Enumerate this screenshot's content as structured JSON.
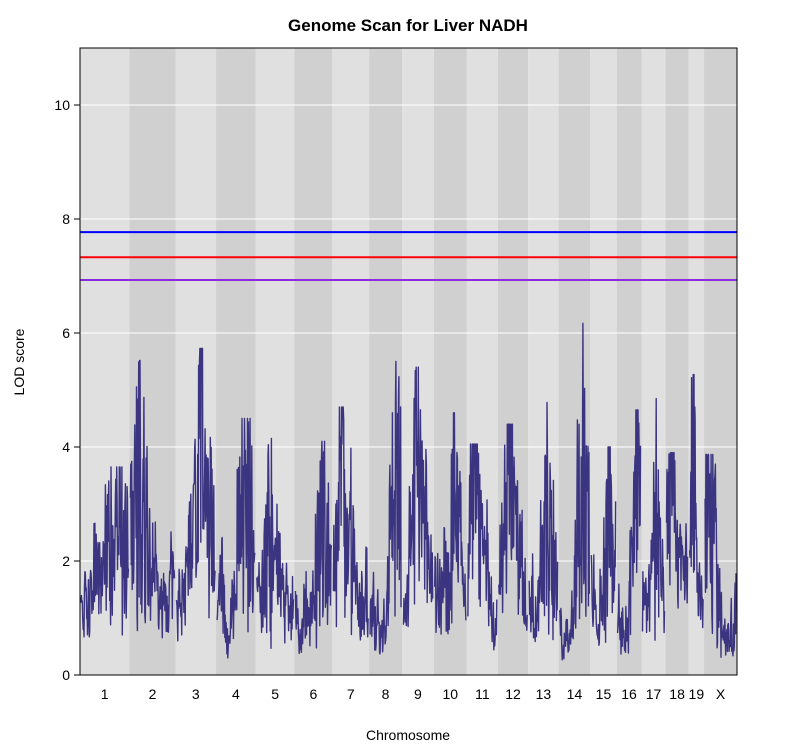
{
  "chart_data": {
    "type": "line",
    "title": "Genome Scan for Liver NADH",
    "xlabel": "Chromosome",
    "ylabel": "LOD score",
    "ylim": [
      0,
      11
    ],
    "yticks": [
      0,
      2,
      4,
      6,
      8,
      10
    ],
    "grid": true,
    "background_colors": {
      "light": "#e0e0e0",
      "dark": "#d0d0d0",
      "grid": "#ffffff"
    },
    "line_color": "#3b3480",
    "chromosomes": [
      {
        "name": "1",
        "length": 195
      },
      {
        "name": "2",
        "length": 182
      },
      {
        "name": "3",
        "length": 160
      },
      {
        "name": "4",
        "length": 157
      },
      {
        "name": "5",
        "length": 152
      },
      {
        "name": "6",
        "length": 150
      },
      {
        "name": "7",
        "length": 145
      },
      {
        "name": "8",
        "length": 130
      },
      {
        "name": "9",
        "length": 125
      },
      {
        "name": "10",
        "length": 131
      },
      {
        "name": "11",
        "length": 122
      },
      {
        "name": "12",
        "length": 120
      },
      {
        "name": "13",
        "length": 120
      },
      {
        "name": "14",
        "length": 125
      },
      {
        "name": "15",
        "length": 104
      },
      {
        "name": "16",
        "length": 98
      },
      {
        "name": "17",
        "length": 95
      },
      {
        "name": "18",
        "length": 91
      },
      {
        "name": "19",
        "length": 61
      },
      {
        "name": "X",
        "length": 130
      }
    ],
    "thresholds": [
      {
        "value": 7.77,
        "color": "#0000ff"
      },
      {
        "value": 7.33,
        "color": "#ff0000"
      },
      {
        "value": 6.93,
        "color": "#8a2be2"
      }
    ],
    "chromosome_peaks": [
      {
        "chr": "1",
        "peak": 3.65
      },
      {
        "chr": "2",
        "peak": 5.52
      },
      {
        "chr": "3",
        "peak": 5.73
      },
      {
        "chr": "4",
        "peak": 4.5
      },
      {
        "chr": "5",
        "peak": 4.15
      },
      {
        "chr": "6",
        "peak": 4.1
      },
      {
        "chr": "7",
        "peak": 4.7
      },
      {
        "chr": "8",
        "peak": 5.5
      },
      {
        "chr": "9",
        "peak": 5.4
      },
      {
        "chr": "10",
        "peak": 4.6
      },
      {
        "chr": "11",
        "peak": 4.05
      },
      {
        "chr": "12",
        "peak": 4.4
      },
      {
        "chr": "13",
        "peak": 4.78
      },
      {
        "chr": "14",
        "peak": 6.17
      },
      {
        "chr": "15",
        "peak": 4.0
      },
      {
        "chr": "16",
        "peak": 4.65
      },
      {
        "chr": "17",
        "peak": 4.85
      },
      {
        "chr": "18",
        "peak": 3.9
      },
      {
        "chr": "19",
        "peak": 5.27
      },
      {
        "chr": "X",
        "peak": 3.87
      }
    ]
  }
}
